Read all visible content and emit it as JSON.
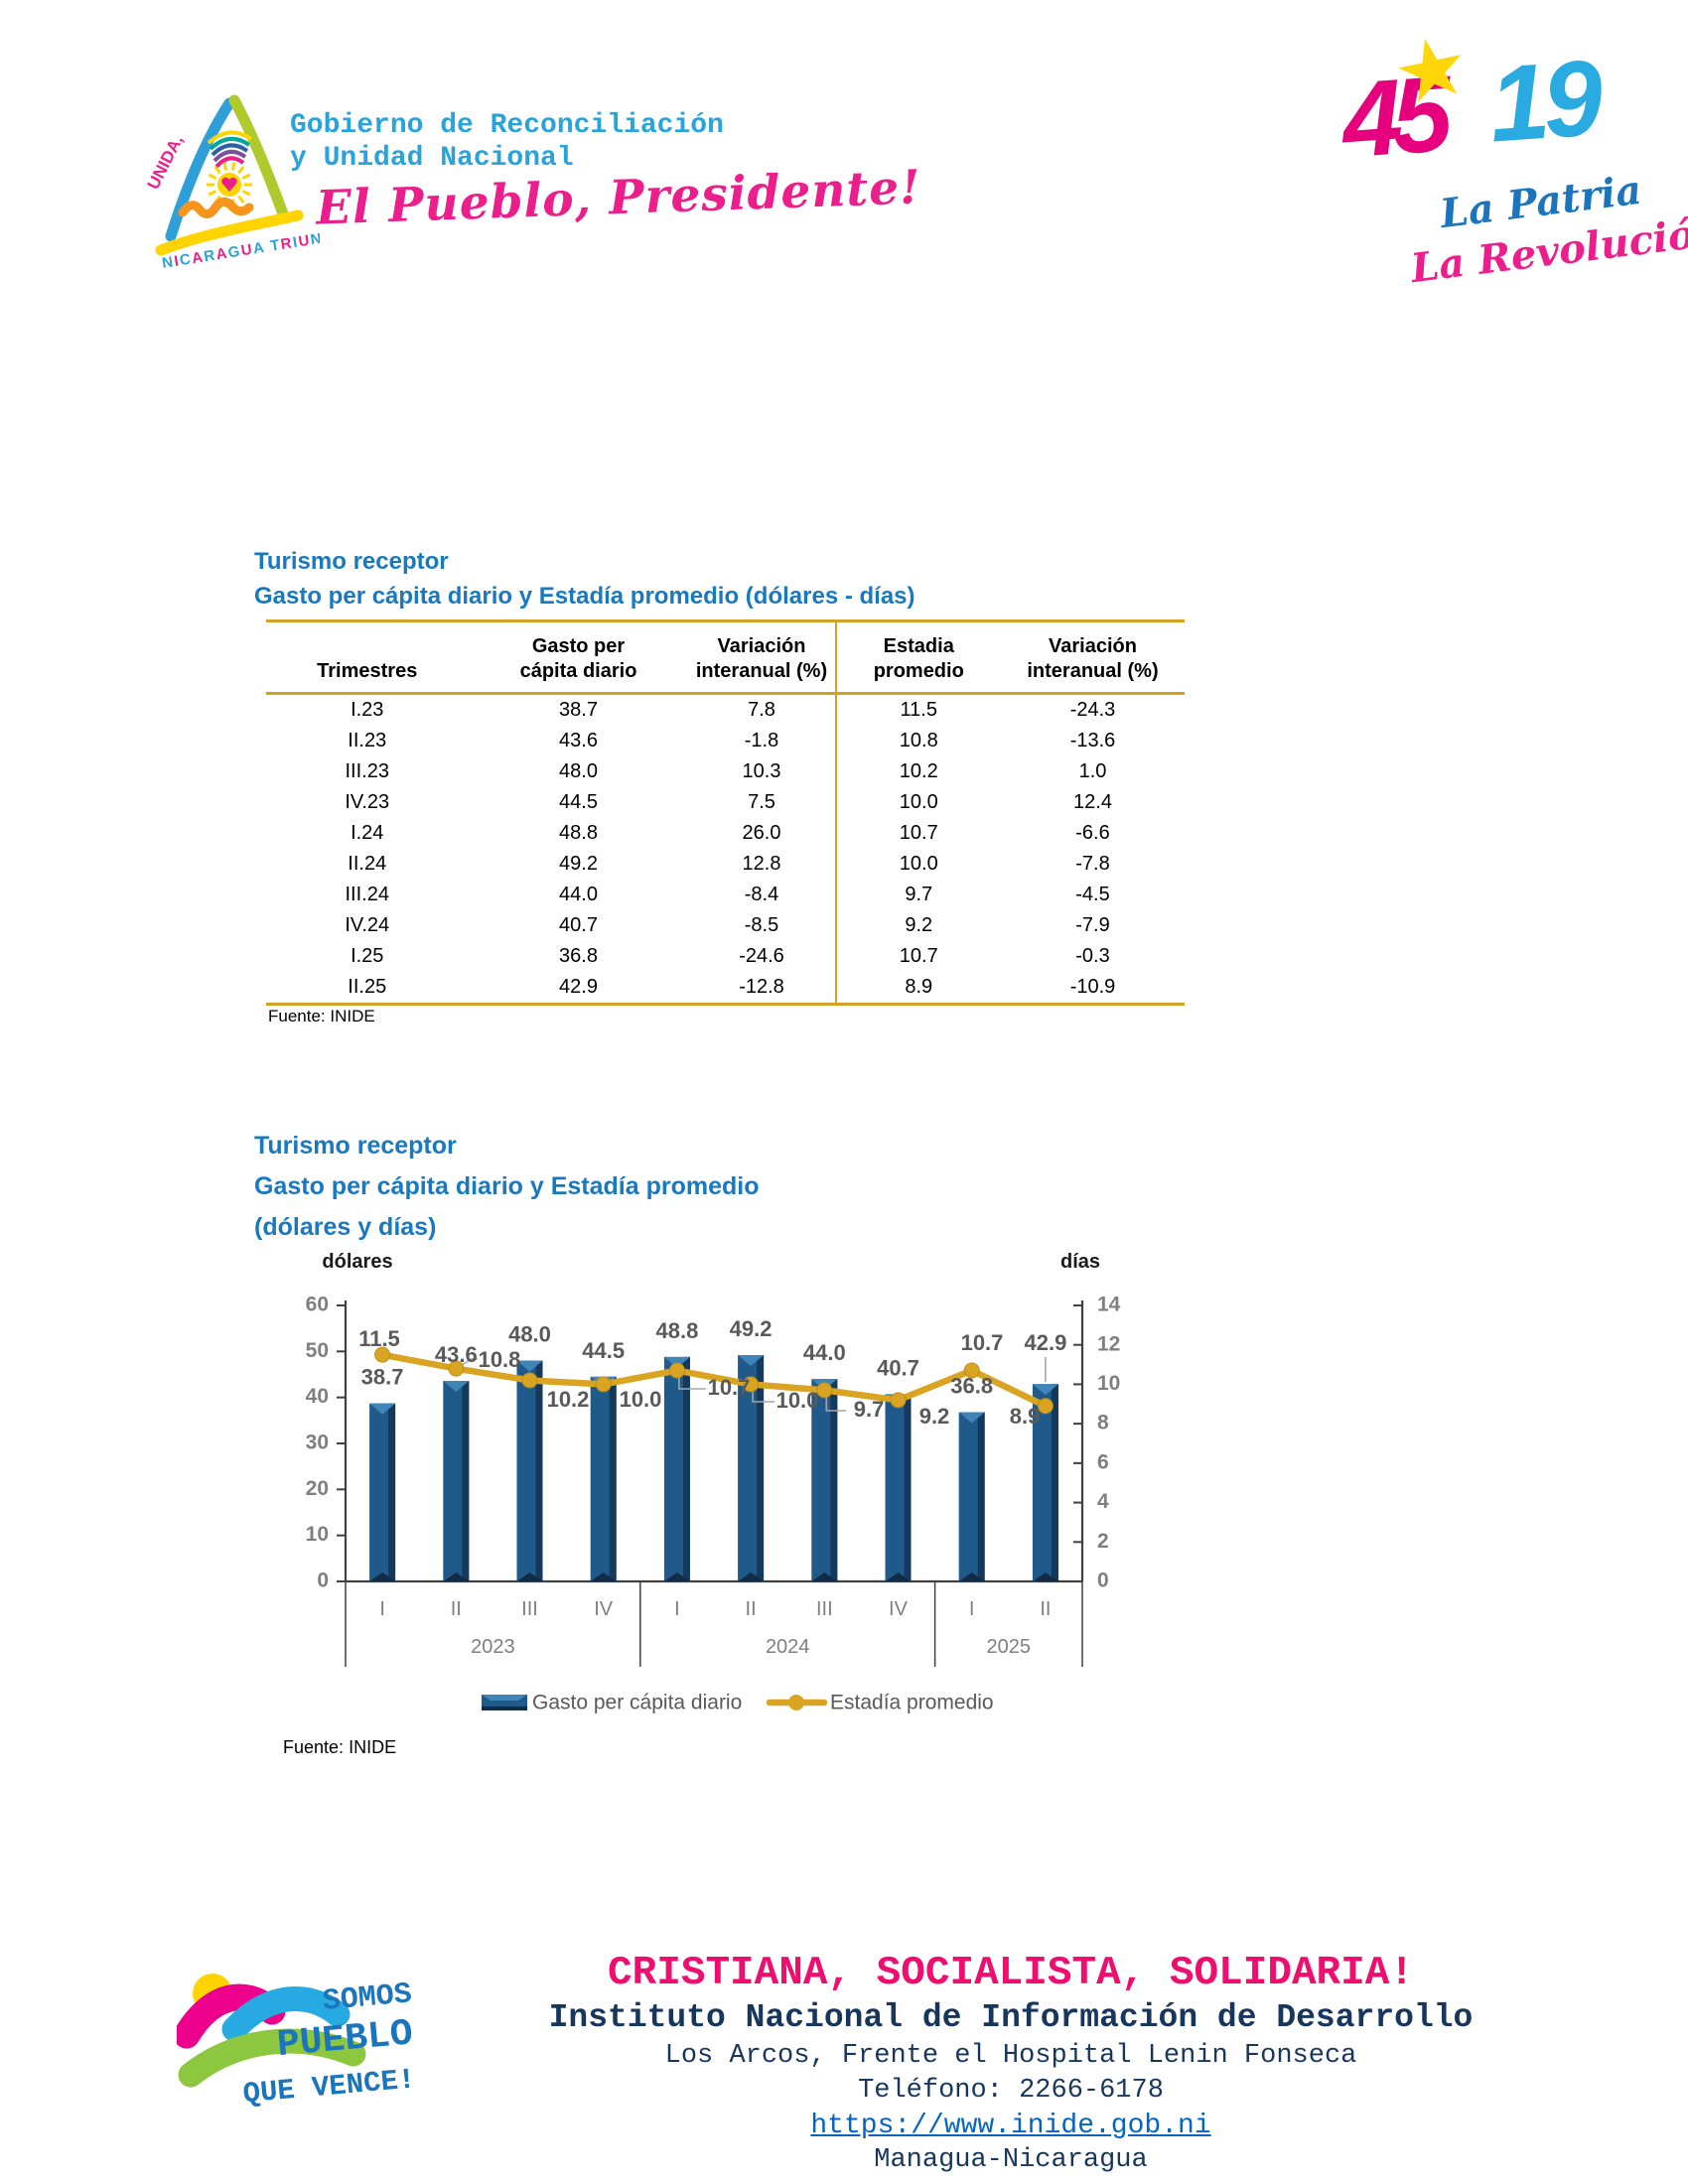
{
  "header": {
    "logo": {
      "unida": "UNIDA,",
      "triunfa": "NICARAGUA TRIUNFA !"
    },
    "gov_line1": "Gobierno de Reconciliación",
    "gov_line2": "y Unidad Nacional",
    "slogan": "El Pueblo, Presidente!",
    "anniversary": {
      "n45": "45",
      "n19": "19",
      "star": "★",
      "script1": "La Patria",
      "script2": "La Revolución!"
    }
  },
  "table_section": {
    "title1": "Turismo receptor",
    "title2": "Gasto per cápita diario y Estadía promedio (dólares - días)",
    "columns": [
      [
        "Trimestres"
      ],
      [
        "Gasto per",
        "cápita diario"
      ],
      [
        "Variación",
        "interanual (%)"
      ],
      [
        "Estadia",
        "promedio"
      ],
      [
        "Variación",
        "interanual (%)"
      ]
    ],
    "rows": [
      [
        "I.23",
        "38.7",
        "7.8",
        "11.5",
        "-24.3"
      ],
      [
        "II.23",
        "43.6",
        "-1.8",
        "10.8",
        "-13.6"
      ],
      [
        "III.23",
        "48.0",
        "10.3",
        "10.2",
        "1.0"
      ],
      [
        "IV.23",
        "44.5",
        "7.5",
        "10.0",
        "12.4"
      ],
      [
        "I.24",
        "48.8",
        "26.0",
        "10.7",
        "-6.6"
      ],
      [
        "II.24",
        "49.2",
        "12.8",
        "10.0",
        "-7.8"
      ],
      [
        "III.24",
        "44.0",
        "-8.4",
        "9.7",
        "-4.5"
      ],
      [
        "IV.24",
        "40.7",
        "-8.5",
        "9.2",
        "-7.9"
      ],
      [
        "I.25",
        "36.8",
        "-24.6",
        "10.7",
        "-0.3"
      ],
      [
        "II.25",
        "42.9",
        "-12.8",
        "8.9",
        "-10.9"
      ]
    ],
    "source_label": "Fuente:",
    "source_value": "INIDE"
  },
  "chart_section": {
    "title1": "Turismo receptor",
    "title2": "Gasto per cápita diario y Estadía promedio",
    "title3": "(dólares y días)",
    "source_label": "Fuente:",
    "source_value": "INIDE"
  },
  "chart_data": {
    "type": "bar",
    "combo": "bar+line dual axis",
    "categories": [
      "I",
      "II",
      "III",
      "IV",
      "I",
      "II",
      "III",
      "IV",
      "I",
      "II"
    ],
    "year_groups": [
      {
        "label": "2023",
        "span": 4
      },
      {
        "label": "2024",
        "span": 4
      },
      {
        "label": "2025",
        "span": 2
      }
    ],
    "series": [
      {
        "name": "Gasto per cápita diario",
        "type": "bar",
        "axis": "left",
        "values": [
          38.7,
          43.6,
          48.0,
          44.5,
          48.8,
          49.2,
          44.0,
          40.7,
          36.8,
          42.9
        ],
        "color": "#1F5A8B"
      },
      {
        "name": "Estadía promedio",
        "type": "line",
        "axis": "right",
        "values": [
          11.5,
          10.8,
          10.2,
          10.0,
          10.7,
          10.0,
          9.7,
          9.2,
          10.7,
          8.9
        ],
        "color": "#D9A422"
      }
    ],
    "left_axis": {
      "label": "dólares",
      "min": 0,
      "max": 60,
      "step": 10
    },
    "right_axis": {
      "label": "días",
      "min": 0,
      "max": 14,
      "step": 2
    },
    "grid": false,
    "legend_position": "bottom",
    "data_labels": true
  },
  "footer": {
    "logo": {
      "line1": "SOMOS",
      "line2": "PUEBLO",
      "line3": "QUE VENCE!"
    },
    "slogan": "CRISTIANA, SOCIALISTA, SOLIDARIA!",
    "institute": "Instituto Nacional de Información de Desarrollo",
    "address": "Los Arcos, Frente el Hospital Lenin Fonseca",
    "phone": "Teléfono: 2266-6178",
    "website": "https://www.inide.gob.ni",
    "location": "Managua-Nicaragua"
  },
  "colors": {
    "title_blue": "#1879C0",
    "gold_rule": "#D1A226",
    "bar_blue": "#1F5A8B",
    "line_gold": "#D9A422",
    "label_gray": "#595959",
    "axis_gray": "#7F7F7F",
    "pink": "#EC1E8C",
    "cyan": "#29A3DC",
    "navy": "#17365D",
    "link_blue": "#0563C1"
  }
}
